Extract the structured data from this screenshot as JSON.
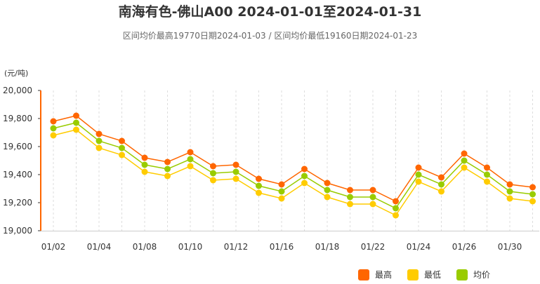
{
  "header": {
    "title": "南海有色-佛山A00 2024-01-01至2024-01-31",
    "subtitle": "区间均价最高19770日期2024-01-03 / 区间均价最低19160日期2024-01-23",
    "unit": "(元/吨)"
  },
  "chart_data": {
    "type": "line",
    "title": "南海有色-佛山A00 2024-01-01至2024-01-31",
    "subtitle": "区间均价最高19770日期2024-01-03 / 区间均价最低19160日期2024-01-23",
    "ylabel": "(元/吨)",
    "ylim": [
      19000,
      20000
    ],
    "y_ticks": [
      "19,000",
      "19,200",
      "19,400",
      "19,600",
      "19,800",
      "20,000"
    ],
    "x": [
      "01/02",
      "01/03",
      "01/04",
      "01/05",
      "01/08",
      "01/09",
      "01/10",
      "01/11",
      "01/12",
      "01/15",
      "01/16",
      "01/17",
      "01/18",
      "01/19",
      "01/22",
      "01/23",
      "01/24",
      "01/25",
      "01/26",
      "01/29",
      "01/30",
      "01/31"
    ],
    "x_tick_labels": [
      "01/02",
      "01/04",
      "01/08",
      "01/10",
      "01/12",
      "01/16",
      "01/18",
      "01/22",
      "01/24",
      "01/26",
      "01/30"
    ],
    "grid": true,
    "legend_position": "bottom-right",
    "series": [
      {
        "name": "最高",
        "color": "#ff6600",
        "values": [
          19780,
          19820,
          19690,
          19640,
          19520,
          19490,
          19560,
          19460,
          19470,
          19370,
          19330,
          19440,
          19340,
          19290,
          19290,
          19210,
          19450,
          19380,
          19550,
          19450,
          19330,
          19310
        ]
      },
      {
        "name": "最低",
        "color": "#ffcc00",
        "values": [
          19680,
          19720,
          19590,
          19540,
          19420,
          19390,
          19460,
          19360,
          19370,
          19270,
          19230,
          19340,
          19240,
          19190,
          19190,
          19110,
          19350,
          19280,
          19450,
          19350,
          19230,
          19210
        ]
      },
      {
        "name": "均价",
        "color": "#99cc00",
        "values": [
          19730,
          19770,
          19640,
          19590,
          19470,
          19440,
          19510,
          19410,
          19420,
          19320,
          19280,
          19390,
          19290,
          19240,
          19240,
          19160,
          19400,
          19330,
          19500,
          19400,
          19280,
          19260
        ]
      }
    ]
  }
}
